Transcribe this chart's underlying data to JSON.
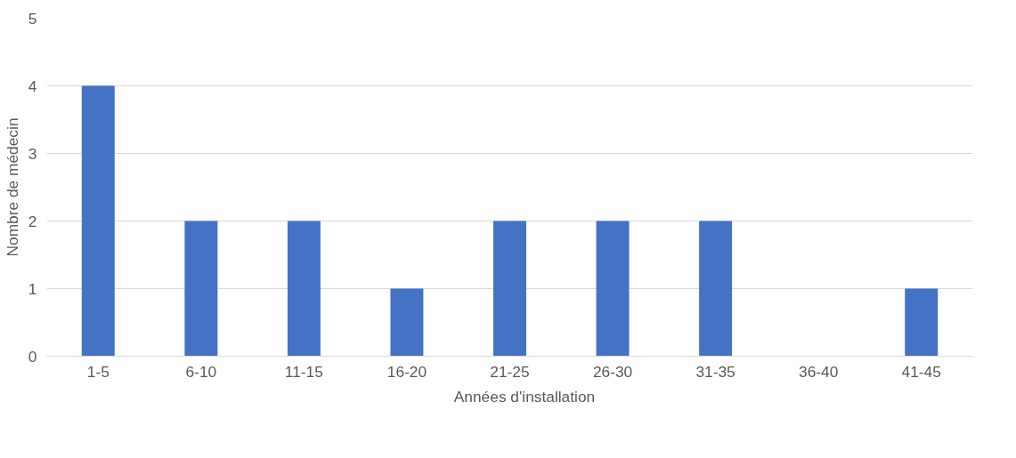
{
  "chart_data": {
    "type": "bar",
    "ylabel": "Nombre de médecin",
    "categories": [
      "1-5",
      "6-10",
      "11-15",
      "16-20",
      "21-25",
      "26-30",
      "31-35",
      "36-40",
      "41-45"
    ],
    "series": [
      {
        "name": "Années d'installation",
        "color": "#4472c4",
        "values": [
          4,
          2,
          2,
          1,
          2,
          2,
          2,
          0,
          1
        ]
      }
    ],
    "ylim": [
      0,
      5
    ],
    "yticks": [
      0,
      1,
      2,
      3,
      4,
      5
    ],
    "grid": "y",
    "legend": "bottom"
  }
}
